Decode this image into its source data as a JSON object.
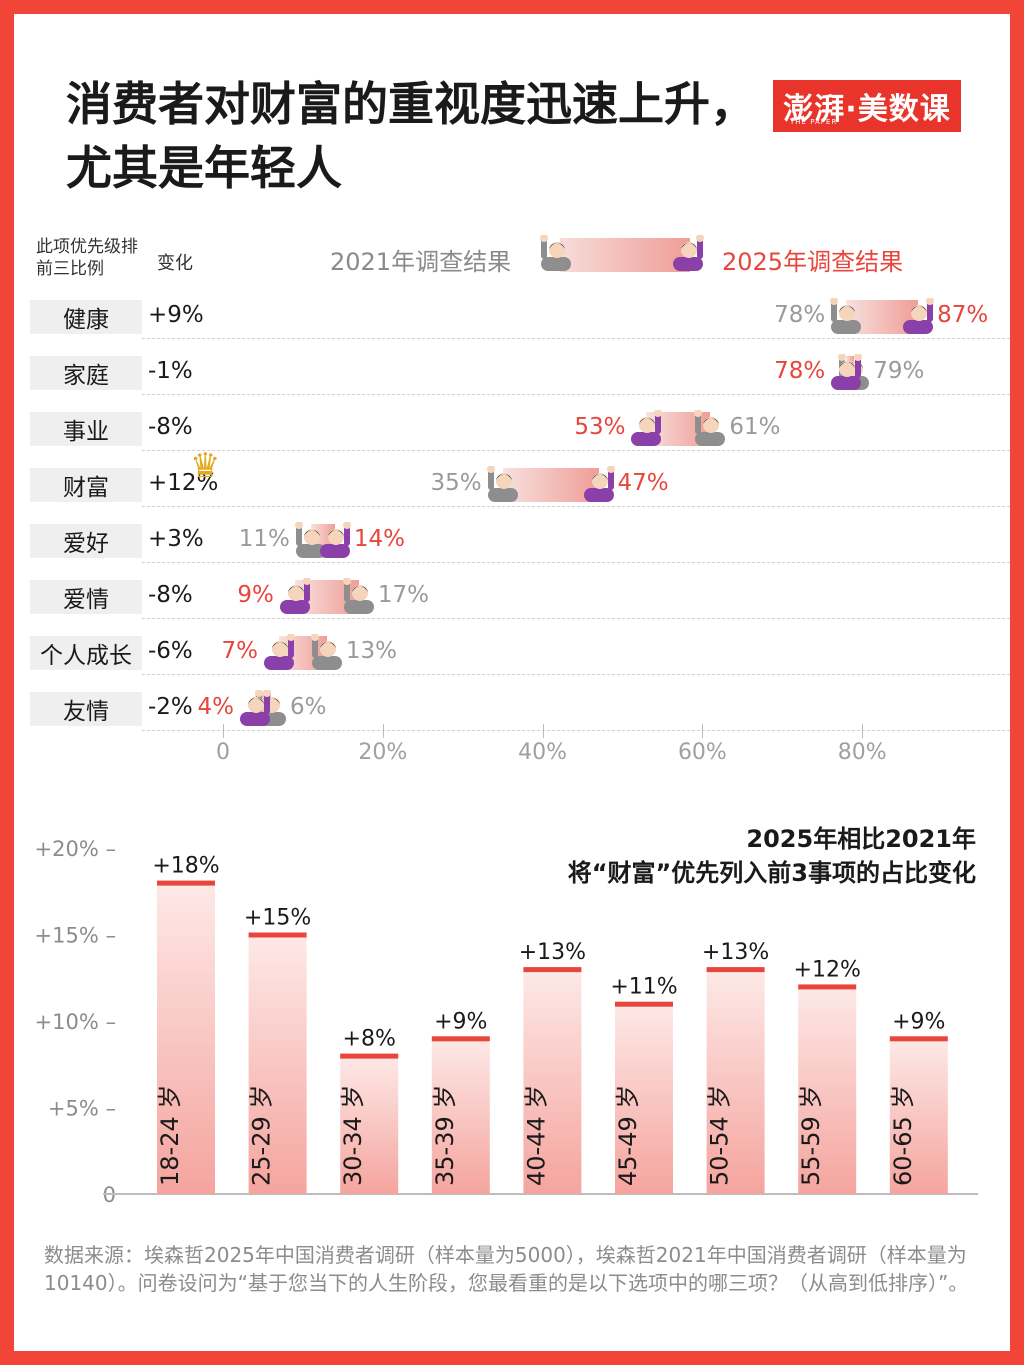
{
  "title": "消费者对财富的重视度迅速上升，尤其是年轻人",
  "logo": {
    "text": "澎湃·美数课",
    "sub": "THE PAPER"
  },
  "headers": {
    "rank": "此项优先级排前三比例",
    "change": "变化"
  },
  "legend": {
    "y2021": "2021年调查结果",
    "y2025": "2025年调查结果"
  },
  "source": "数据来源：埃森哲2025年中国消费者调研（样本量为5000），埃森哲2021年中国消费者调研（样本量为10140）。问卷设问为“基于您当下的人生阶段，您最看重的是以下选项中的哪三项？（从高到低排序）”。",
  "colors": {
    "accent": "#e8453c",
    "border": "#f24437",
    "gray": "#9a9a9a"
  },
  "chart_data": [
    {
      "type": "dumbbell",
      "xlim": [
        0,
        100
      ],
      "x_ticks": [
        "0",
        "20%",
        "40%",
        "60%",
        "80%"
      ],
      "rows": [
        {
          "category": "健康",
          "change": "+9%",
          "y2021": 78,
          "y2025": 87,
          "y2021_label": "78%",
          "y2025_label": "87%"
        },
        {
          "category": "家庭",
          "change": "-1%",
          "y2021": 79,
          "y2025": 78,
          "y2021_label": "79%",
          "y2025_label": "78%"
        },
        {
          "category": "事业",
          "change": "-8%",
          "y2021": 61,
          "y2025": 53,
          "y2021_label": "61%",
          "y2025_label": "53%"
        },
        {
          "category": "财富",
          "change": "+12%",
          "y2021": 35,
          "y2025": 47,
          "y2021_label": "35%",
          "y2025_label": "47%",
          "highlight": "crown-icon"
        },
        {
          "category": "爱好",
          "change": "+3%",
          "y2021": 11,
          "y2025": 14,
          "y2021_label": "11%",
          "y2025_label": "14%"
        },
        {
          "category": "爱情",
          "change": "-8%",
          "y2021": 17,
          "y2025": 9,
          "y2021_label": "17%",
          "y2025_label": "9%"
        },
        {
          "category": "个人成长",
          "change": "-6%",
          "y2021": 13,
          "y2025": 7,
          "y2021_label": "13%",
          "y2025_label": "7%"
        },
        {
          "category": "友情",
          "change": "-2%",
          "y2021": 6,
          "y2025": 4,
          "y2021_label": "6%",
          "y2025_label": "4%"
        }
      ]
    },
    {
      "type": "bar",
      "title": "2025年相比2021年\n将“财富”优先列入前3事项的占比变化",
      "categories": [
        "18-24 岁",
        "25-29 岁",
        "30-34 岁",
        "35-39 岁",
        "40-44 岁",
        "45-49 岁",
        "50-54 岁",
        "55-59 岁",
        "60-65 岁"
      ],
      "values": [
        18,
        15,
        8,
        9,
        13,
        11,
        13,
        12,
        9
      ],
      "value_labels": [
        "+18%",
        "+15%",
        "+8%",
        "+9%",
        "+13%",
        "+11%",
        "+13%",
        "+12%",
        "+9%"
      ],
      "y_ticks": [
        {
          "value": 20,
          "label": "+20% –"
        },
        {
          "value": 15,
          "label": "+15% –"
        },
        {
          "value": 10,
          "label": "+10% –"
        },
        {
          "value": 5,
          "label": "+5% –"
        },
        {
          "value": 0,
          "label": "0"
        }
      ],
      "ylim": [
        0,
        20
      ]
    }
  ]
}
